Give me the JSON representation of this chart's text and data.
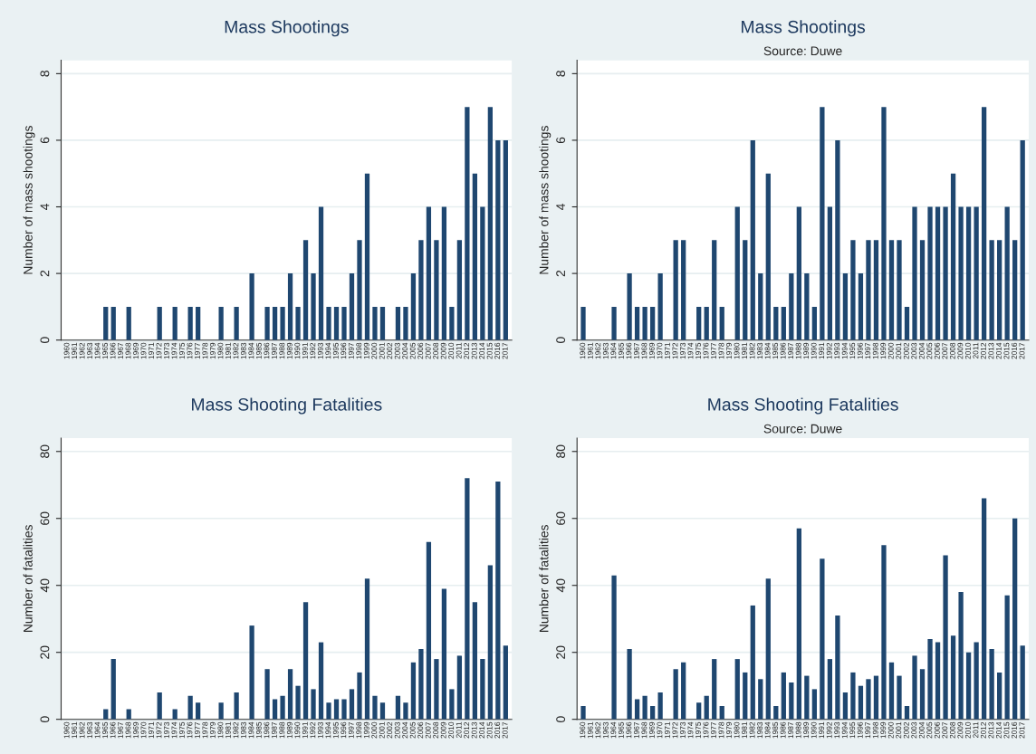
{
  "chart_data": [
    {
      "type": "bar",
      "title": "Mass Shootings",
      "ylabel": "Number of mass shootings",
      "categories": [
        "1960",
        "1961",
        "1962",
        "1963",
        "1964",
        "1965",
        "1966",
        "1967",
        "1968",
        "1969",
        "1970",
        "1971",
        "1972",
        "1973",
        "1974",
        "1975",
        "1976",
        "1977",
        "1978",
        "1979",
        "1980",
        "1981",
        "1982",
        "1983",
        "1984",
        "1985",
        "1986",
        "1987",
        "1988",
        "1989",
        "1990",
        "1991",
        "1992",
        "1993",
        "1994",
        "1995",
        "1996",
        "1997",
        "1998",
        "1999",
        "2000",
        "2001",
        "2002",
        "2003",
        "2004",
        "2005",
        "2006",
        "2007",
        "2008",
        "2009",
        "2010",
        "2011",
        "2012",
        "2013",
        "2014",
        "2015",
        "2016",
        "2017"
      ],
      "values": [
        0,
        0,
        0,
        0,
        0,
        1,
        1,
        0,
        1,
        0,
        0,
        0,
        1,
        0,
        1,
        0,
        1,
        1,
        0,
        0,
        1,
        0,
        1,
        0,
        2,
        0,
        1,
        1,
        1,
        2,
        1,
        3,
        2,
        4,
        1,
        1,
        1,
        2,
        3,
        5,
        1,
        1,
        0,
        1,
        1,
        2,
        3,
        4,
        3,
        4,
        1,
        3,
        7,
        5,
        4,
        7,
        6,
        6
      ],
      "color": "#1f4770",
      "ylim": [
        0,
        8.4
      ],
      "yticks": [
        0,
        2,
        4,
        6,
        8
      ],
      "grid": "y"
    },
    {
      "type": "bar",
      "title": "Mass Shootings",
      "subtitle": "Source: Duwe",
      "ylabel": "Number of mass shootings",
      "categories": [
        "1960",
        "1961",
        "1962",
        "1963",
        "1964",
        "1965",
        "1966",
        "1967",
        "1968",
        "1969",
        "1970",
        "1971",
        "1972",
        "1973",
        "1974",
        "1975",
        "1976",
        "1977",
        "1978",
        "1979",
        "1980",
        "1981",
        "1982",
        "1983",
        "1984",
        "1985",
        "1986",
        "1987",
        "1988",
        "1989",
        "1990",
        "1991",
        "1992",
        "1993",
        "1994",
        "1995",
        "1996",
        "1997",
        "1998",
        "1999",
        "2000",
        "2001",
        "2002",
        "2003",
        "2004",
        "2005",
        "2006",
        "2007",
        "2008",
        "2009",
        "2010",
        "2011",
        "2012",
        "2013",
        "2014",
        "2015",
        "2016",
        "2017"
      ],
      "values": [
        1,
        0,
        0,
        0,
        1,
        0,
        2,
        1,
        1,
        1,
        2,
        0,
        3,
        3,
        0,
        1,
        1,
        3,
        1,
        0,
        4,
        3,
        6,
        2,
        5,
        1,
        1,
        2,
        4,
        2,
        1,
        7,
        4,
        6,
        2,
        3,
        2,
        3,
        3,
        7,
        3,
        3,
        1,
        4,
        3,
        4,
        4,
        4,
        5,
        4,
        4,
        4,
        7,
        3,
        3,
        4,
        3,
        6
      ],
      "color": "#1f4770",
      "ylim": [
        0,
        8.4
      ],
      "yticks": [
        0,
        2,
        4,
        6,
        8
      ],
      "grid": "y"
    },
    {
      "type": "bar",
      "title": "Mass Shooting Fatalities",
      "ylabel": "Number of fatalities",
      "categories": [
        "1960",
        "1961",
        "1962",
        "1963",
        "1964",
        "1965",
        "1966",
        "1967",
        "1968",
        "1969",
        "1970",
        "1971",
        "1972",
        "1973",
        "1974",
        "1975",
        "1976",
        "1977",
        "1978",
        "1979",
        "1980",
        "1981",
        "1982",
        "1983",
        "1984",
        "1985",
        "1986",
        "1987",
        "1988",
        "1989",
        "1990",
        "1991",
        "1992",
        "1993",
        "1994",
        "1995",
        "1996",
        "1997",
        "1998",
        "1999",
        "2000",
        "2001",
        "2002",
        "2003",
        "2004",
        "2005",
        "2006",
        "2007",
        "2008",
        "2009",
        "2010",
        "2011",
        "2012",
        "2013",
        "2014",
        "2015",
        "2016",
        "2017"
      ],
      "values": [
        0,
        0,
        0,
        0,
        0,
        3,
        18,
        0,
        3,
        0,
        0,
        0,
        8,
        0,
        3,
        0,
        7,
        5,
        0,
        0,
        5,
        0,
        8,
        0,
        28,
        0,
        15,
        6,
        7,
        15,
        10,
        35,
        9,
        23,
        5,
        6,
        6,
        9,
        14,
        42,
        7,
        5,
        0,
        7,
        5,
        17,
        21,
        53,
        18,
        39,
        9,
        19,
        72,
        35,
        18,
        46,
        71,
        22
      ],
      "color": "#1f4770",
      "ylim": [
        0,
        84
      ],
      "yticks": [
        0,
        20,
        40,
        60,
        80
      ],
      "grid": "y"
    },
    {
      "type": "bar",
      "title": "Mass Shooting Fatalities",
      "subtitle": "Source: Duwe",
      "ylabel": "Number of fatalities",
      "categories": [
        "1960",
        "1961",
        "1962",
        "1963",
        "1964",
        "1965",
        "1966",
        "1967",
        "1968",
        "1969",
        "1970",
        "1971",
        "1972",
        "1973",
        "1974",
        "1975",
        "1976",
        "1977",
        "1978",
        "1979",
        "1980",
        "1981",
        "1982",
        "1983",
        "1984",
        "1985",
        "1986",
        "1987",
        "1988",
        "1989",
        "1990",
        "1991",
        "1992",
        "1993",
        "1994",
        "1995",
        "1996",
        "1997",
        "1998",
        "1999",
        "2000",
        "2001",
        "2002",
        "2003",
        "2004",
        "2005",
        "2006",
        "2007",
        "2008",
        "2009",
        "2010",
        "2011",
        "2012",
        "2013",
        "2014",
        "2015",
        "2016",
        "2017"
      ],
      "values": [
        4,
        0,
        0,
        0,
        43,
        0,
        21,
        6,
        7,
        4,
        8,
        0,
        15,
        17,
        0,
        5,
        7,
        18,
        4,
        0,
        18,
        14,
        34,
        12,
        42,
        4,
        14,
        11,
        57,
        13,
        9,
        48,
        18,
        31,
        8,
        14,
        10,
        12,
        13,
        52,
        17,
        13,
        4,
        19,
        15,
        24,
        23,
        49,
        25,
        38,
        20,
        23,
        66,
        21,
        14,
        37,
        60,
        22
      ],
      "color": "#1f4770",
      "ylim": [
        0,
        84
      ],
      "yticks": [
        0,
        20,
        40,
        60,
        80
      ],
      "grid": "y"
    }
  ]
}
